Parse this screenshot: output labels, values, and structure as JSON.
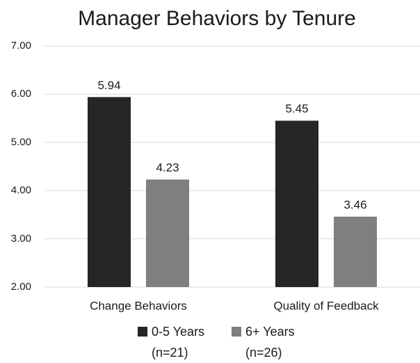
{
  "chart_data": {
    "type": "bar",
    "title": "Manager Behaviors by Tenure",
    "categories": [
      "Change Behaviors",
      "Quality of Feedback"
    ],
    "series": [
      {
        "name": "0-5 Years\n(n=21)",
        "color": "#262626",
        "values": [
          5.94,
          5.45
        ]
      },
      {
        "name": "6+ Years\n(n=26)",
        "color": "#7f7f7f",
        "values": [
          4.23,
          3.46
        ]
      }
    ],
    "ylim": [
      2,
      7
    ],
    "yticks": [
      {
        "value": 2,
        "label": "2.00"
      },
      {
        "value": 3,
        "label": "3.00"
      },
      {
        "value": 4,
        "label": "4.00"
      },
      {
        "value": 5,
        "label": "5.00"
      },
      {
        "value": 6,
        "label": "6.00"
      },
      {
        "value": 7,
        "label": "7.00"
      }
    ],
    "grid": true,
    "legend": "bottom"
  }
}
